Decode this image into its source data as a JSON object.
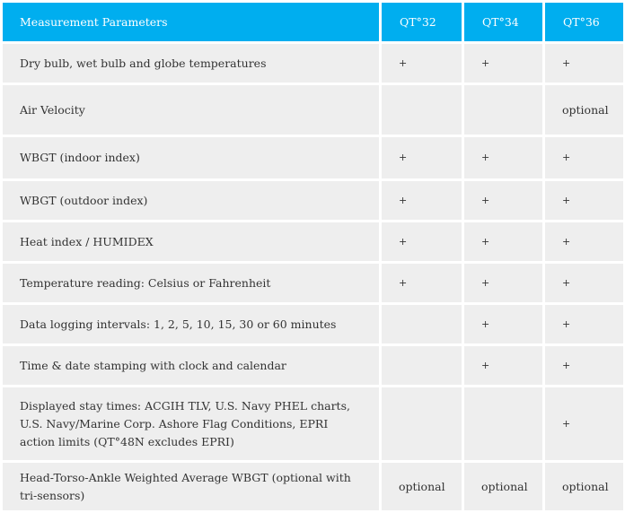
{
  "table": {
    "headers": [
      "Measurement Parameters",
      "QT°32",
      "QT°34",
      "QT°36"
    ],
    "rows": [
      {
        "parameter": "Dry bulb, wet bulb and globe temperatures",
        "qt32": "+",
        "qt34": "+",
        "qt36": "+"
      },
      {
        "parameter": "Air Velocity",
        "qt32": "",
        "qt34": "",
        "qt36": "optional"
      },
      {
        "parameter": "WBGT (indoor index)",
        "qt32": "+",
        "qt34": "+",
        "qt36": "+"
      },
      {
        "parameter": "WBGT (outdoor index)",
        "qt32": "+",
        "qt34": "+",
        "qt36": "+"
      },
      {
        "parameter": "Heat index / HUMIDEX",
        "qt32": "+",
        "qt34": "+",
        "qt36": "+"
      },
      {
        "parameter": "Temperature reading: Celsius or Fahrenheit",
        "qt32": "+",
        "qt34": "+",
        "qt36": "+"
      },
      {
        "parameter": "Data logging intervals: 1, 2, 5, 10, 15, 30 or 60 minutes",
        "qt32": "",
        "qt34": "+",
        "qt36": "+"
      },
      {
        "parameter": "Time & date stamping with clock and calendar",
        "qt32": "",
        "qt34": "+",
        "qt36": "+"
      },
      {
        "parameter": "Displayed stay times: ACGIH TLV, U.S. Navy PHEL charts, U.S. Navy/Marine Corp. Ashore Flag Conditions, EPRI action limits (QT°48N excludes EPRI)",
        "qt32": "",
        "qt34": "",
        "qt36": "+"
      },
      {
        "parameter": "Head-Torso-Ankle Weighted Average WBGT (optional with tri-sensors)",
        "qt32": "optional",
        "qt34": "optional",
        "qt36": "optional"
      }
    ]
  },
  "colors": {
    "header_bg": "#00aeef",
    "cell_bg": "#eeeeee"
  }
}
